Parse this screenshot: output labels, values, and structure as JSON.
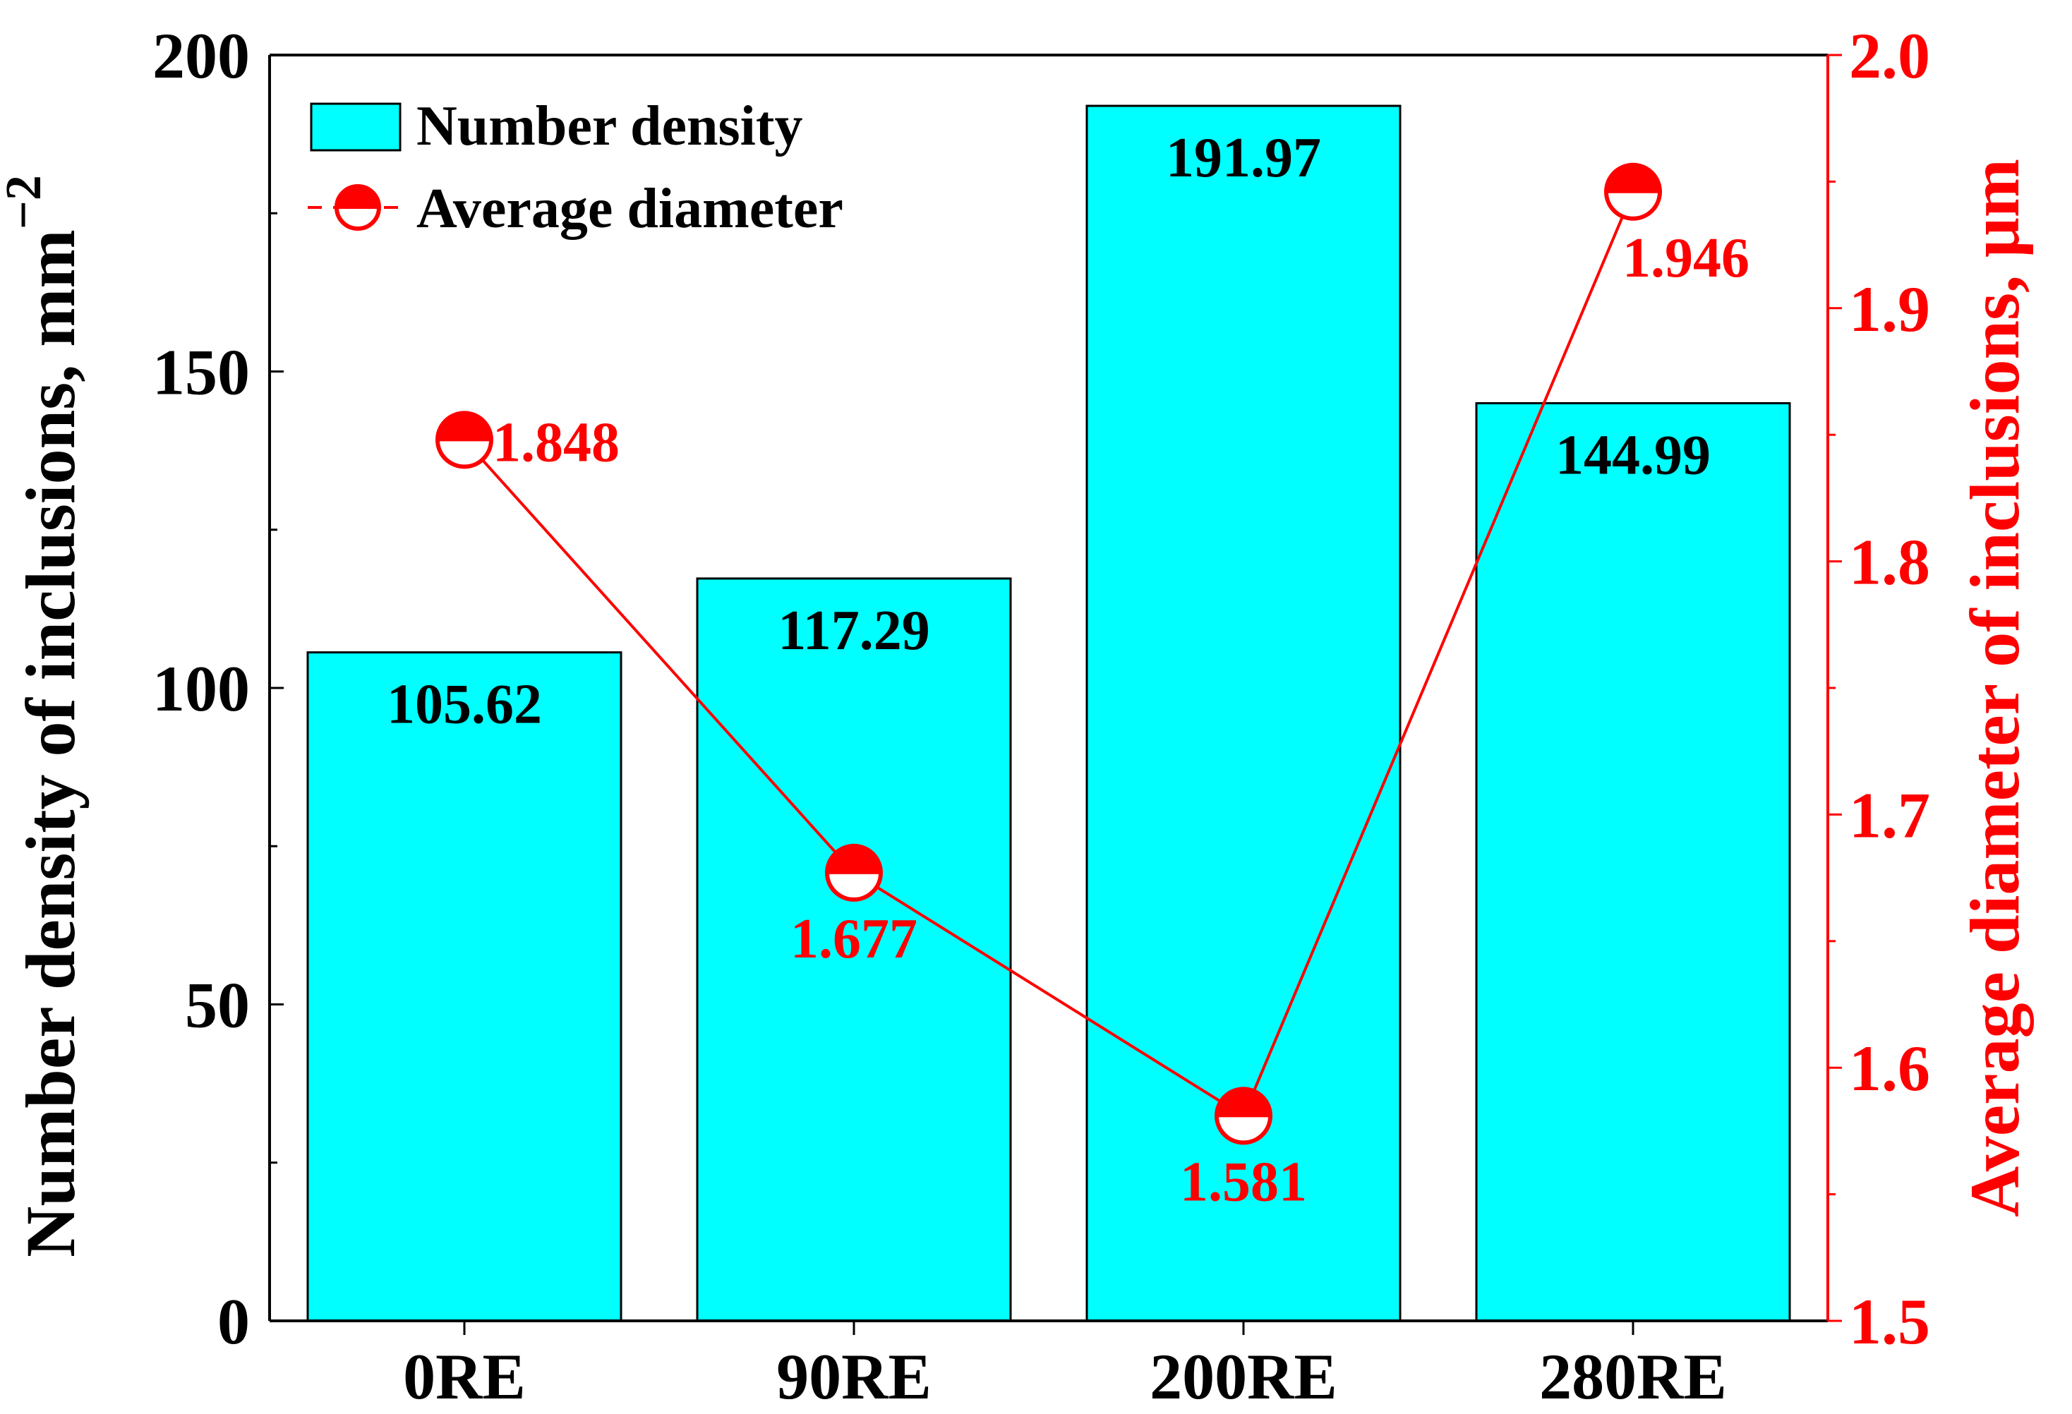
{
  "chart_data": {
    "type": "bar",
    "categories": [
      "0RE",
      "90RE",
      "200RE",
      "280RE"
    ],
    "series": [
      {
        "name": "Number density",
        "type": "bar",
        "axis": "left",
        "values": [
          105.62,
          117.29,
          191.97,
          144.99
        ],
        "labels": [
          "105.62",
          "117.29",
          "191.97",
          "144.99"
        ],
        "color": "#00FFFF"
      },
      {
        "name": "Average diameter",
        "type": "line",
        "axis": "right",
        "values": [
          1.848,
          1.677,
          1.581,
          1.946
        ],
        "labels": [
          "1.848",
          "1.677",
          "1.581",
          "1.946"
        ],
        "color": "#FF0000"
      }
    ],
    "ylabel": "Number density of inclusions, mm",
    "ylabel_sup": "−2",
    "y2label": "Average diameter of inclusions, μm",
    "ylim": [
      0,
      200
    ],
    "y2lim": [
      1.5,
      2.0
    ],
    "yticks": [
      "0",
      "50",
      "100",
      "150",
      "200"
    ],
    "y2ticks": [
      "1.5",
      "1.6",
      "1.7",
      "1.8",
      "1.9",
      "2.0"
    ],
    "legend_position": "top-left",
    "grid": false,
    "colors": {
      "axis_left": "#000000",
      "axis_right": "#FF0000",
      "bar_fill": "#00FFFF",
      "line": "#FF0000"
    }
  }
}
